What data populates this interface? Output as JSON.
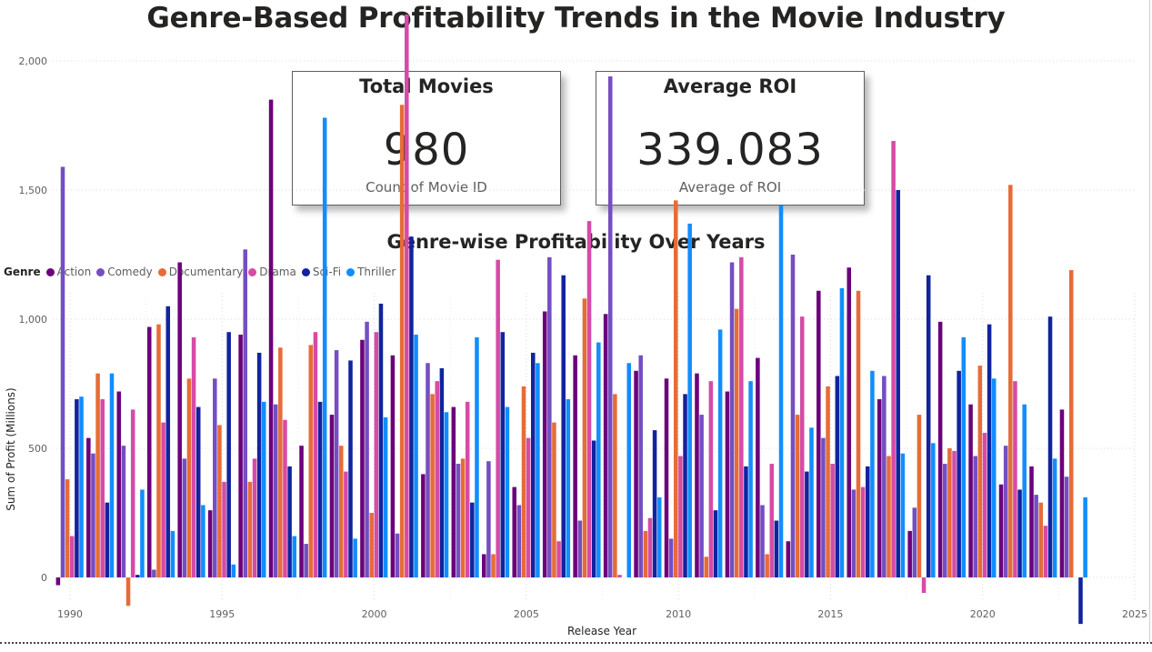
{
  "page": {
    "title": "Genre-Based Profitability Trends in the Movie Industry"
  },
  "cards": [
    {
      "title": "Total Movies",
      "value": "980",
      "subtitle": "Count of Movie ID"
    },
    {
      "title": "Average ROI",
      "value": "339.083",
      "subtitle": "Average of ROI"
    }
  ],
  "chart_data": {
    "type": "bar",
    "title": "Genre-wise Profitability Over Years",
    "xlabel": "Release Year",
    "ylabel": "Sum of Profit (Millions)",
    "xlim": [
      1990,
      2025
    ],
    "ylim": [
      -200,
      2200
    ],
    "x_ticks": [
      1990,
      1995,
      2000,
      2005,
      2010,
      2015,
      2020,
      2025
    ],
    "y_ticks": [
      0,
      500,
      1000,
      1500,
      2000
    ],
    "y_tick_labels": [
      "0",
      "500",
      "1,000",
      "1,500",
      "2,000"
    ],
    "grid": true,
    "legend_title": "Genre",
    "legend_position": "top-left",
    "years": [
      1990,
      1991,
      1992,
      1993,
      1994,
      1995,
      1996,
      1997,
      1998,
      1999,
      2000,
      2001,
      2002,
      2003,
      2004,
      2005,
      2006,
      2007,
      2008,
      2009,
      2010,
      2011,
      2012,
      2013,
      2014,
      2015,
      2016,
      2017,
      2018,
      2019,
      2020,
      2021,
      2022,
      2023
    ],
    "series": [
      {
        "name": "Action",
        "color": "#6b007b",
        "values": [
          -30,
          540,
          720,
          970,
          1220,
          260,
          940,
          1850,
          510,
          630,
          920,
          860,
          400,
          660,
          90,
          350,
          1030,
          860,
          1020,
          800,
          770,
          790,
          720,
          850,
          140,
          1110,
          1200,
          690,
          180,
          990,
          670,
          360,
          430,
          650
        ]
      },
      {
        "name": "Comedy",
        "color": "#744ec2",
        "values": [
          1590,
          480,
          510,
          30,
          460,
          770,
          1270,
          670,
          130,
          880,
          990,
          170,
          830,
          440,
          450,
          280,
          1240,
          220,
          1940,
          860,
          150,
          630,
          1220,
          280,
          1250,
          540,
          340,
          780,
          270,
          440,
          470,
          510,
          320,
          390
        ]
      },
      {
        "name": "Documentary",
        "color": "#e66c37",
        "values": [
          380,
          790,
          -110,
          980,
          770,
          590,
          370,
          890,
          900,
          510,
          250,
          1830,
          710,
          460,
          90,
          740,
          600,
          1080,
          710,
          180,
          1460,
          80,
          1040,
          90,
          630,
          740,
          1110,
          470,
          630,
          500,
          820,
          1520,
          290,
          1190
        ]
      },
      {
        "name": "Drama",
        "color": "#d64ba6",
        "values": [
          160,
          690,
          650,
          600,
          930,
          370,
          460,
          610,
          950,
          410,
          950,
          2180,
          760,
          680,
          1230,
          540,
          140,
          1380,
          10,
          230,
          470,
          760,
          1240,
          440,
          1010,
          440,
          350,
          1690,
          -60,
          490,
          560,
          760,
          200,
          0
        ]
      },
      {
        "name": "Sci-Fi",
        "color": "#12239e",
        "values": [
          690,
          290,
          10,
          1050,
          660,
          950,
          870,
          430,
          680,
          840,
          1060,
          1320,
          810,
          290,
          950,
          870,
          1170,
          530,
          0,
          570,
          710,
          260,
          430,
          220,
          410,
          780,
          430,
          1500,
          1170,
          800,
          980,
          340,
          1010,
          -180
        ]
      },
      {
        "name": "Thriller",
        "color": "#118dff",
        "values": [
          700,
          790,
          340,
          180,
          280,
          50,
          680,
          160,
          1780,
          150,
          620,
          940,
          640,
          930,
          660,
          830,
          690,
          910,
          830,
          310,
          1370,
          960,
          760,
          1440,
          580,
          1120,
          800,
          480,
          520,
          930,
          770,
          670,
          460,
          310
        ]
      }
    ]
  }
}
